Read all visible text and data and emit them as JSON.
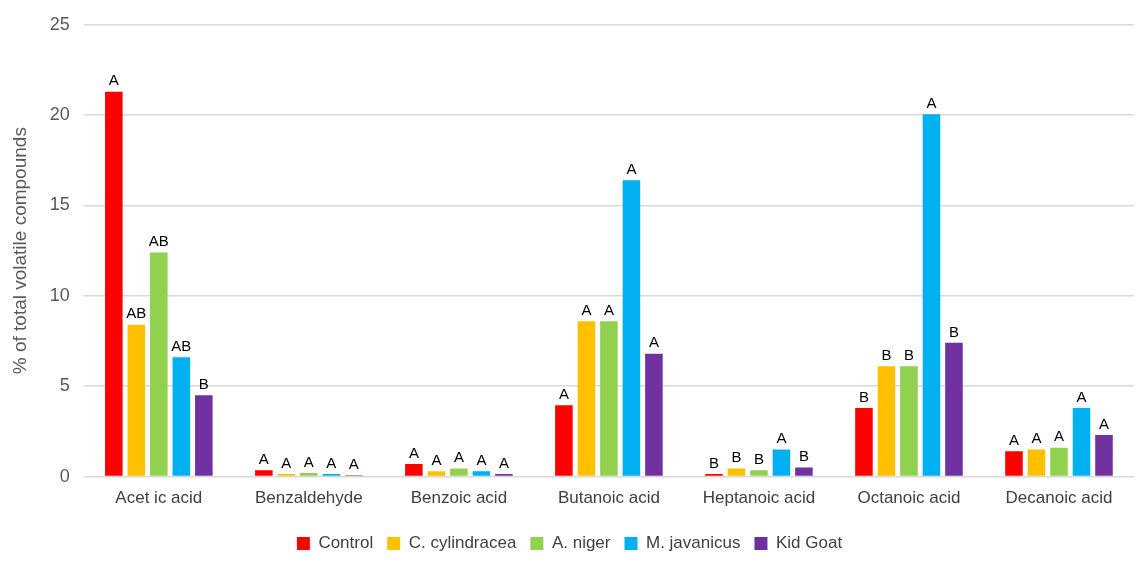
{
  "chart_data": {
    "type": "bar",
    "ylabel": "% of total volatile compounds",
    "categories": [
      "Acet ic acid",
      "Benzaldehyde",
      "Benzoic acid",
      "Butanoic acid",
      "Heptanoic acid",
      "Octanoic acid",
      "Decanoic acid"
    ],
    "series": [
      {
        "name": "Control",
        "color": "#ff0000",
        "values": [
          21.3,
          0.35,
          0.7,
          3.95,
          0.15,
          3.8,
          1.4
        ],
        "value_labels": [
          "A",
          "A",
          "A",
          "A",
          "B",
          "B",
          "A"
        ]
      },
      {
        "name": "C. cylindracea",
        "color": "#ffc000",
        "values": [
          8.4,
          0.15,
          0.3,
          8.6,
          0.45,
          6.1,
          1.5
        ],
        "value_labels": [
          "AB",
          "A",
          "A",
          "A",
          "B",
          "B",
          "A"
        ]
      },
      {
        "name": "A. niger",
        "color": "#92d050",
        "values": [
          12.4,
          0.2,
          0.45,
          8.6,
          0.35,
          6.1,
          1.6
        ],
        "value_labels": [
          "AB",
          "A",
          "A",
          "A",
          "B",
          "B",
          "A"
        ]
      },
      {
        "name": "M. javanicus",
        "color": "#00b0f0",
        "values": [
          6.6,
          0.15,
          0.3,
          16.4,
          1.5,
          20.05,
          3.8
        ],
        "value_labels": [
          "AB",
          "A",
          "A",
          "A",
          "A",
          "A",
          "A"
        ]
      },
      {
        "name": "Kid Goat",
        "color": "#7030a0",
        "values": [
          4.5,
          0.08,
          0.15,
          6.8,
          0.5,
          7.4,
          2.3
        ],
        "value_labels": [
          "B",
          "A",
          "A",
          "A",
          "B",
          "B",
          "A"
        ]
      }
    ],
    "ylim": [
      0,
      25
    ],
    "yticks": [
      0,
      5,
      10,
      15,
      20,
      25
    ],
    "grid": "y",
    "legend": "bottom"
  }
}
